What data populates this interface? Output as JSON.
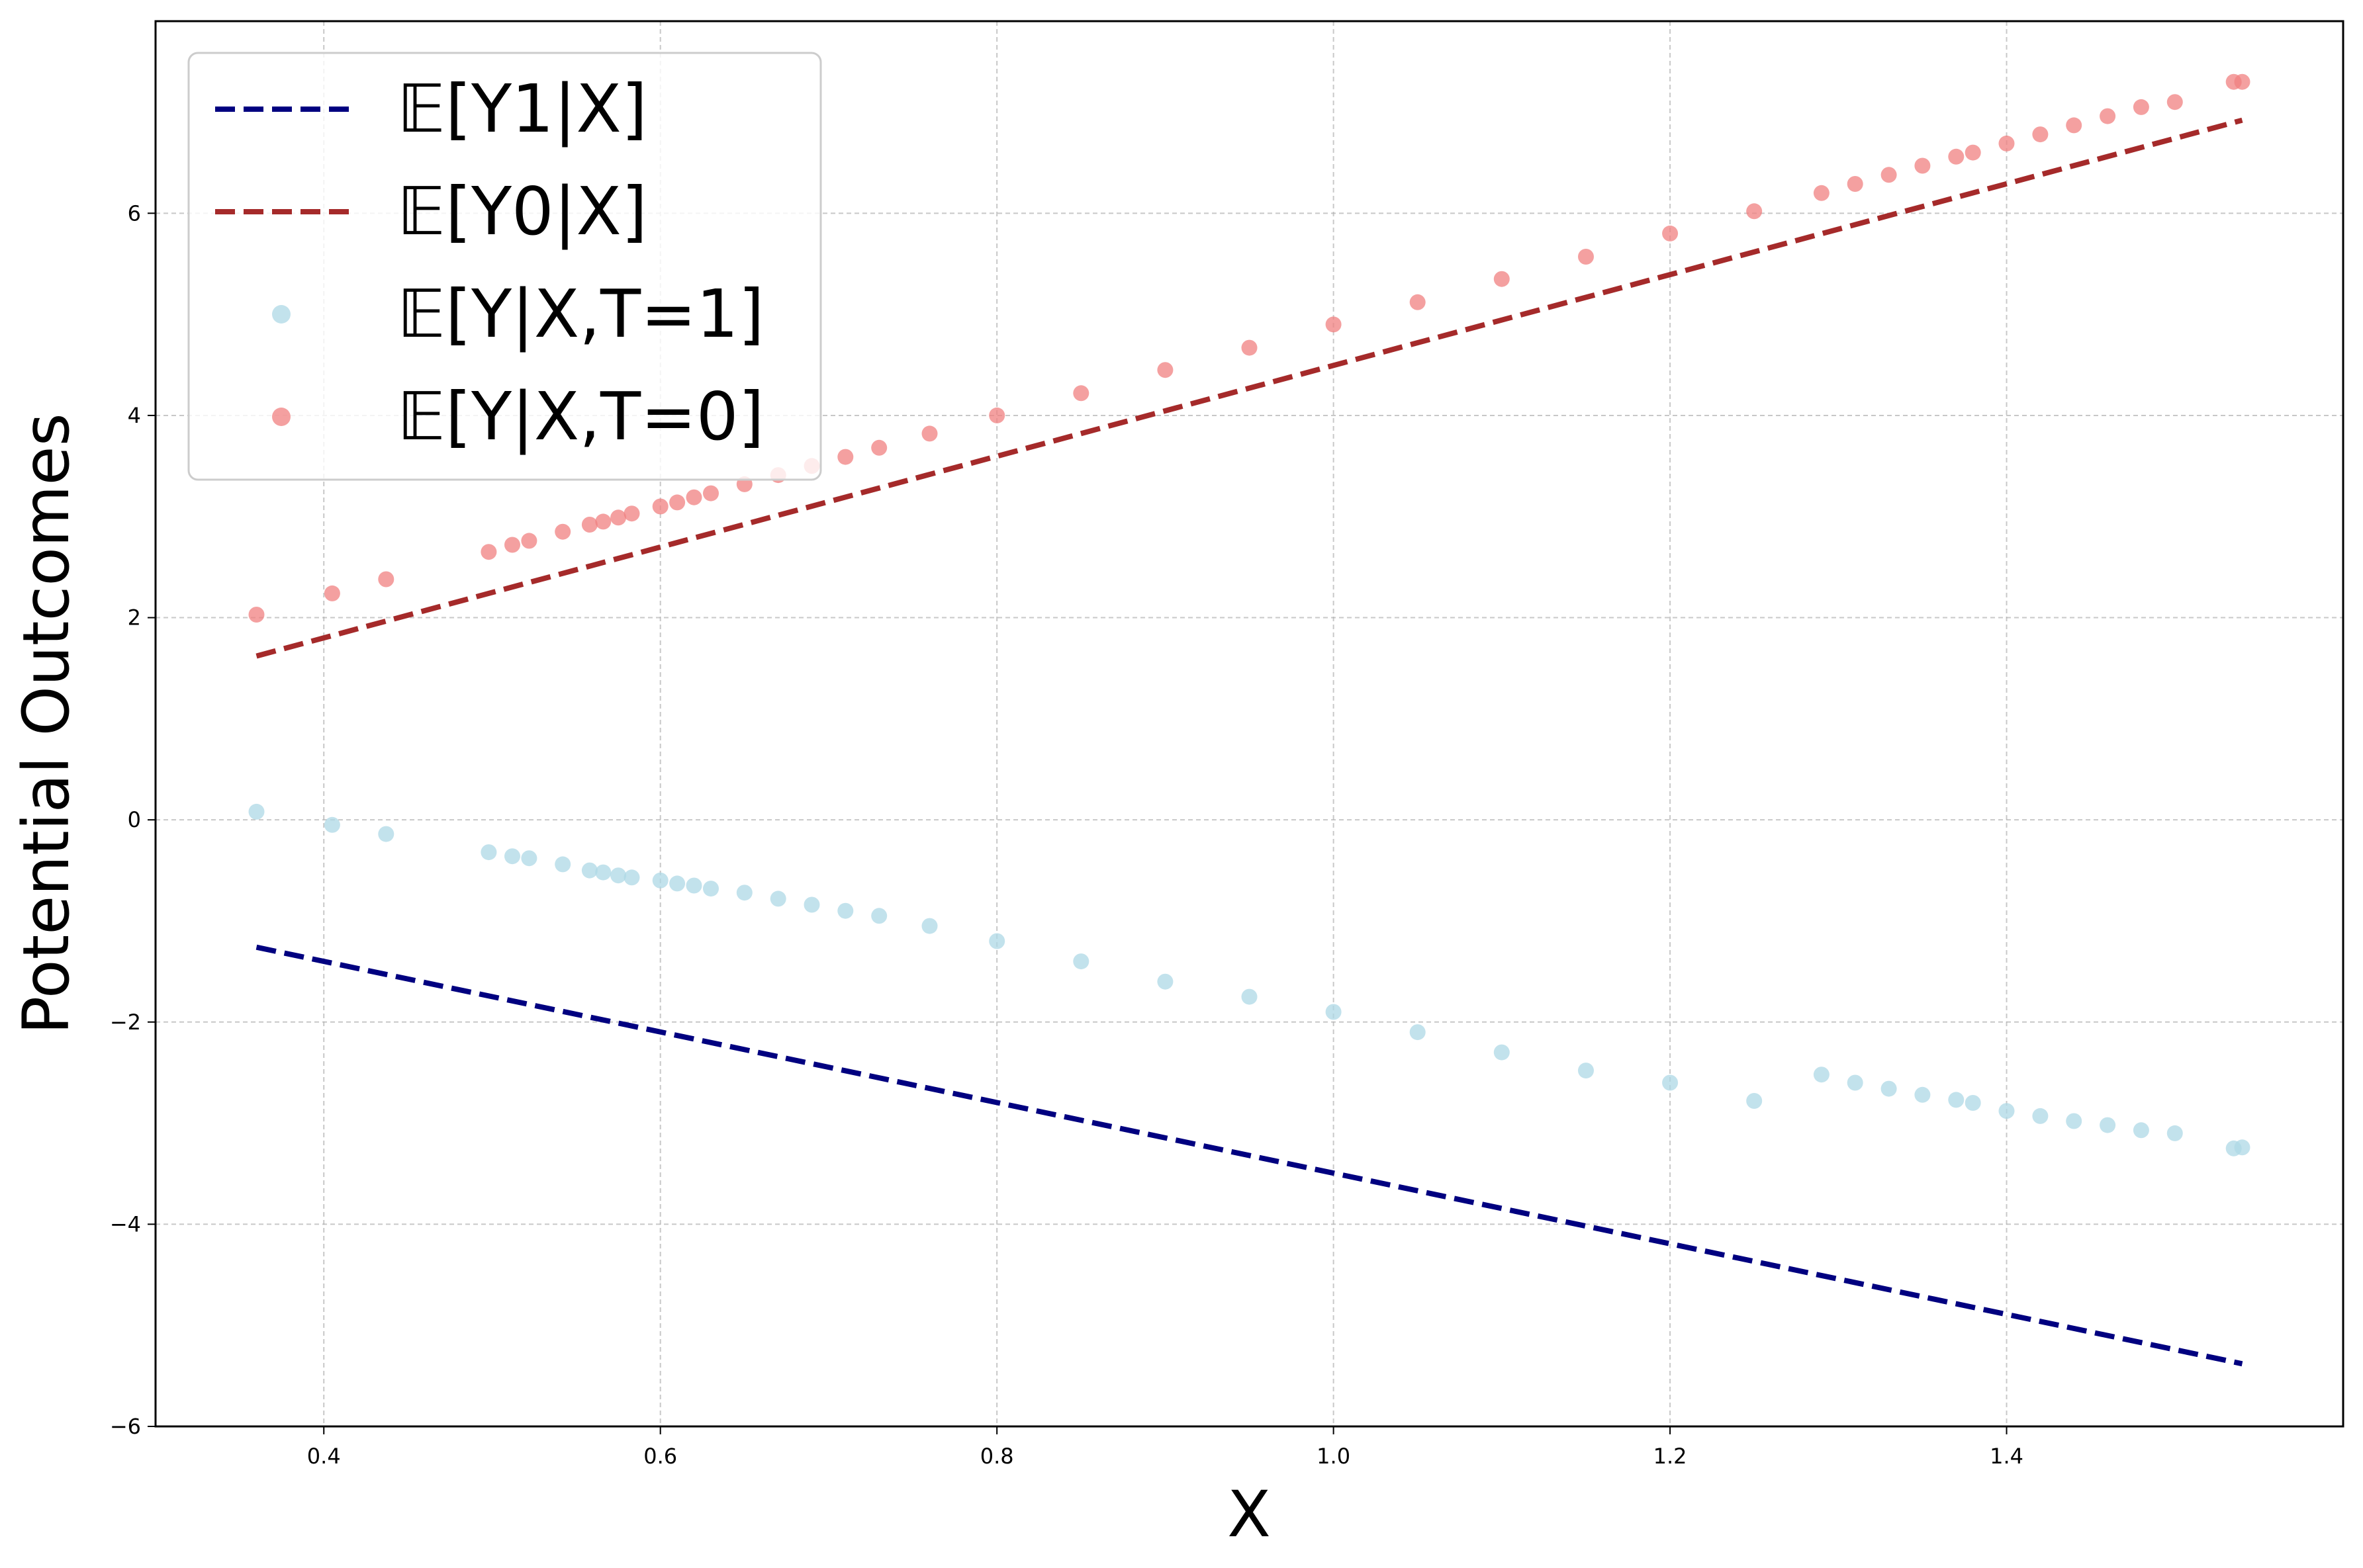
{
  "chart_data": {
    "type": "line",
    "title": "",
    "xlabel": "X",
    "ylabel": "Potential Outcomes",
    "xlim": [
      0.3,
      1.6
    ],
    "ylim": [
      -6,
      7.9
    ],
    "xticks": [
      0.4,
      0.6,
      0.8,
      1.0,
      1.2,
      1.4
    ],
    "xtick_labels": [
      "0.4",
      "0.6",
      "0.8",
      "1.0",
      "1.2",
      "1.4"
    ],
    "yticks": [
      -6,
      -4,
      -2,
      0,
      2,
      4,
      6
    ],
    "ytick_labels": [
      "−6",
      "−4",
      "−2",
      "0",
      "2",
      "4",
      "6"
    ],
    "grid": true,
    "legend_position": "upper-left",
    "series": [
      {
        "name": "𝔼[Y1|X]",
        "kind": "dashed-line",
        "color": "#000080",
        "x": [
          0.36,
          1.54
        ],
        "y": [
          -1.26,
          -5.38
        ]
      },
      {
        "name": "𝔼[Y0|X]",
        "kind": "dashed-line",
        "color": "#a52a2a",
        "x": [
          0.36,
          1.54
        ],
        "y": [
          1.62,
          6.92
        ]
      },
      {
        "name": "𝔼[Y|X,T=1]",
        "kind": "scatter",
        "color": "#add8e6",
        "x": [
          0.36,
          0.405,
          0.437,
          0.498,
          0.512,
          0.522,
          0.542,
          0.558,
          0.566,
          0.575,
          0.583,
          0.6,
          0.61,
          0.62,
          0.63,
          0.65,
          0.67,
          0.69,
          0.71,
          0.73,
          0.76,
          0.8,
          0.85,
          0.9,
          0.95,
          1.0,
          1.05,
          1.1,
          1.15,
          1.2,
          1.25,
          1.29,
          1.31,
          1.33,
          1.35,
          1.37,
          1.38,
          1.4,
          1.42,
          1.44,
          1.46,
          1.48,
          1.5,
          1.535,
          1.54
        ],
        "y": [
          0.08,
          -0.05,
          -0.14,
          -0.32,
          -0.36,
          -0.38,
          -0.44,
          -0.5,
          -0.52,
          -0.55,
          -0.57,
          -0.6,
          -0.63,
          -0.65,
          -0.68,
          -0.72,
          -0.78,
          -0.84,
          -0.9,
          -0.95,
          -1.05,
          -1.2,
          -1.4,
          -1.6,
          -1.75,
          -1.9,
          -2.1,
          -2.3,
          -2.48,
          -2.6,
          -2.78,
          -2.52,
          -2.6,
          -2.66,
          -2.72,
          -2.77,
          -2.8,
          -2.88,
          -2.93,
          -2.98,
          -3.02,
          -3.07,
          -3.1,
          -3.25,
          -3.24
        ]
      },
      {
        "name": "𝔼[Y|X,T=0]",
        "kind": "scatter",
        "color": "#f08080",
        "x": [
          0.36,
          0.405,
          0.437,
          0.498,
          0.512,
          0.522,
          0.542,
          0.558,
          0.566,
          0.575,
          0.583,
          0.6,
          0.61,
          0.62,
          0.63,
          0.65,
          0.67,
          0.69,
          0.71,
          0.73,
          0.76,
          0.8,
          0.85,
          0.9,
          0.95,
          1.0,
          1.05,
          1.1,
          1.15,
          1.2,
          1.25,
          1.29,
          1.31,
          1.33,
          1.35,
          1.37,
          1.38,
          1.4,
          1.42,
          1.44,
          1.46,
          1.48,
          1.5,
          1.535,
          1.54
        ],
        "y": [
          2.03,
          2.24,
          2.38,
          2.65,
          2.72,
          2.76,
          2.85,
          2.92,
          2.95,
          2.99,
          3.03,
          3.1,
          3.14,
          3.19,
          3.23,
          3.32,
          3.41,
          3.5,
          3.59,
          3.68,
          3.82,
          4.0,
          4.22,
          4.45,
          4.67,
          4.9,
          5.12,
          5.35,
          5.57,
          5.8,
          6.02,
          6.2,
          6.29,
          6.38,
          6.47,
          6.56,
          6.6,
          6.69,
          6.78,
          6.87,
          6.96,
          7.05,
          7.1,
          7.3,
          7.3
        ]
      }
    ]
  }
}
